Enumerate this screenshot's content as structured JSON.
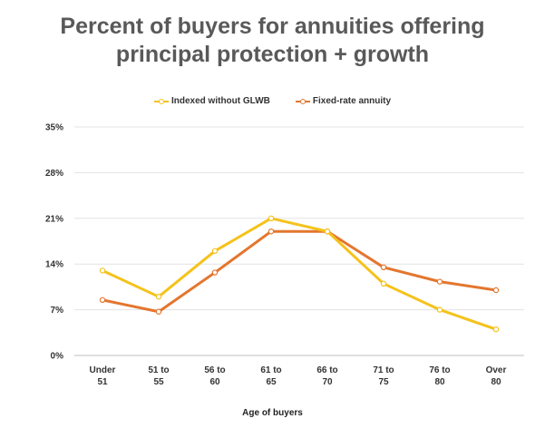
{
  "chart_data": {
    "type": "line",
    "title_lines": [
      "Percent of buyers for annuities offering",
      "principal protection + growth"
    ],
    "xlabel": "Age of buyers",
    "ylabel": "",
    "categories": [
      [
        "Under",
        "51"
      ],
      [
        "51 to",
        "55"
      ],
      [
        "56 to",
        "60"
      ],
      [
        "61 to",
        "65"
      ],
      [
        "66 to",
        "70"
      ],
      [
        "71 to",
        "75"
      ],
      [
        "76 to",
        "80"
      ],
      [
        "Over",
        "80"
      ]
    ],
    "y_ticks": [
      0,
      7,
      14,
      21,
      28,
      35
    ],
    "y_tick_labels": [
      "0%",
      "7%",
      "14%",
      "21%",
      "28%",
      "35%"
    ],
    "ylim": [
      0,
      35
    ],
    "grid": true,
    "legend_position": "top-center",
    "series": [
      {
        "name": "Indexed without GLWB",
        "color": "#f5c21b",
        "values": [
          13,
          9,
          16,
          21,
          19,
          11,
          7,
          4
        ]
      },
      {
        "name": "Fixed-rate annuity",
        "color": "#e4762e",
        "values": [
          8.5,
          6.7,
          12.7,
          19,
          19,
          13.5,
          11.3,
          10
        ]
      }
    ]
  }
}
